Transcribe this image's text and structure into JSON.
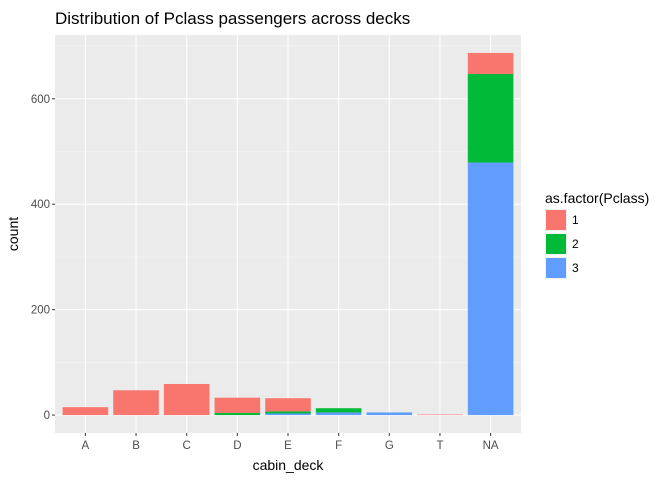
{
  "chart_data": {
    "type": "bar",
    "stacked": true,
    "title": "Distribution of Pclass passengers across decks",
    "xlabel": "cabin_deck",
    "ylabel": "count",
    "categories": [
      "A",
      "B",
      "C",
      "D",
      "E",
      "F",
      "G",
      "T",
      "NA"
    ],
    "series": [
      {
        "name": "1",
        "color": "#F8766D",
        "values": [
          15,
          47,
          59,
          29,
          25,
          0,
          0,
          1,
          40
        ]
      },
      {
        "name": "2",
        "color": "#00BA38",
        "values": [
          0,
          0,
          0,
          4,
          4,
          8,
          0,
          0,
          168
        ]
      },
      {
        "name": "3",
        "color": "#619CFF",
        "values": [
          0,
          0,
          0,
          0,
          3,
          5,
          5,
          0,
          479
        ]
      }
    ],
    "ylim": [
      -34,
      721
    ],
    "yticks": [
      0,
      200,
      400,
      600
    ],
    "grid": true,
    "legend": {
      "title": "as.factor(Pclass)",
      "position": "right"
    }
  }
}
